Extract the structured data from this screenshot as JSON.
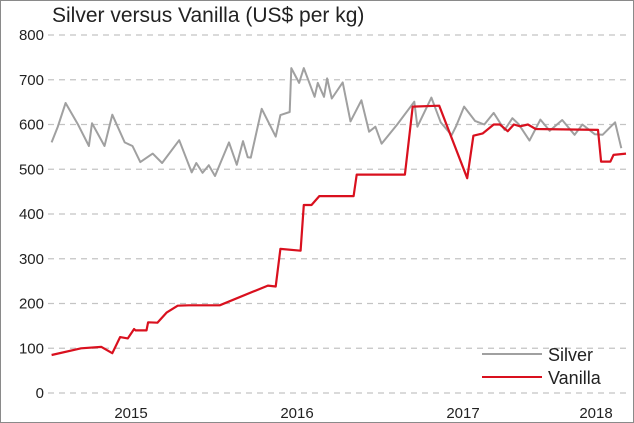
{
  "title": "Silver versus Vanilla (US$ per kg)",
  "legend": [
    {
      "label": "Silver",
      "color": "#a0a0a0"
    },
    {
      "label": "Vanilla",
      "color": "#d9101e"
    }
  ],
  "y_ticks": [
    "800",
    "700",
    "600",
    "500",
    "400",
    "300",
    "200",
    "100",
    "0"
  ],
  "x_ticks": [
    "2015",
    "2016",
    "2017",
    "2018"
  ],
  "chart_data": {
    "type": "line",
    "title": "Silver versus Vanilla (US$ per kg)",
    "xlabel": "",
    "ylabel": "US$ per kg",
    "ylim": [
      0,
      800
    ],
    "yticks": [
      0,
      100,
      200,
      300,
      400,
      500,
      600,
      700,
      800
    ],
    "xticks": [
      "2015",
      "2016",
      "2017",
      "2018"
    ],
    "xrange": [
      2014.55,
      2018.25
    ],
    "grid": "horizontal dashed",
    "legend_position": "lower right",
    "series": [
      {
        "name": "Silver",
        "color": "#a0a0a0",
        "x": [
          2014.56,
          2014.6,
          2014.65,
          2014.73,
          2014.8,
          2014.82,
          2014.9,
          2014.95,
          2015.03,
          2015.08,
          2015.13,
          2015.21,
          2015.27,
          2015.38,
          2015.46,
          2015.49,
          2015.53,
          2015.57,
          2015.61,
          2015.7,
          2015.75,
          2015.79,
          2015.82,
          2015.84,
          2015.91,
          2016.0,
          2016.03,
          2016.09,
          2016.1,
          2016.15,
          2016.18,
          2016.25,
          2016.27,
          2016.31,
          2016.33,
          2016.36,
          2016.43,
          2016.48,
          2016.55,
          2016.6,
          2016.64,
          2016.68,
          2016.78,
          2016.89,
          2016.91,
          2017.0,
          2017.06,
          2017.13,
          2017.16,
          2017.21,
          2017.28,
          2017.34,
          2017.4,
          2017.47,
          2017.52,
          2017.56,
          2017.63,
          2017.7,
          2017.76,
          2017.84,
          2017.92,
          2017.97,
          2018.05,
          2018.1,
          2018.18,
          2018.22
        ],
        "values": [
          560,
          595,
          648,
          600,
          552,
          603,
          552,
          622,
          560,
          552,
          516,
          535,
          514,
          565,
          493,
          514,
          492,
          509,
          485,
          560,
          510,
          563,
          527,
          526,
          635,
          573,
          621,
          628,
          726,
          693,
          726,
          662,
          693,
          662,
          703,
          658,
          694,
          607,
          654,
          584,
          595,
          557,
          600,
          651,
          595,
          660,
          605,
          576,
          597,
          640,
          608,
          600,
          626,
          588,
          614,
          601,
          564,
          611,
          586,
          610,
          577,
          600,
          578,
          577,
          605,
          547
        ]
      },
      {
        "name": "Vanilla",
        "color": "#d9101e",
        "x": [
          2014.56,
          2014.75,
          2014.88,
          2014.95,
          2015.0,
          2015.05,
          2015.09,
          2015.1,
          2015.17,
          2015.18,
          2015.24,
          2015.3,
          2015.37,
          2015.44,
          2015.58,
          2015.64,
          2015.95,
          2016.0,
          2016.03,
          2016.16,
          2016.18,
          2016.23,
          2016.28,
          2016.5,
          2016.52,
          2016.83,
          2016.88,
          2017.05,
          2017.23,
          2017.27,
          2017.33,
          2017.4,
          2017.44,
          2017.49,
          2017.53,
          2017.57,
          2017.62,
          2017.67,
          2018.07,
          2018.09,
          2018.15,
          2018.17,
          2018.25
        ],
        "values": [
          85,
          100,
          103,
          89,
          125,
          122,
          143,
          140,
          140,
          158,
          157,
          180,
          195,
          196,
          196,
          196,
          240,
          238,
          322,
          318,
          420,
          420,
          440,
          440,
          488,
          488,
          640,
          642,
          480,
          575,
          580,
          600,
          600,
          585,
          600,
          596,
          600,
          590,
          588,
          517,
          517,
          532,
          535
        ]
      }
    ]
  }
}
